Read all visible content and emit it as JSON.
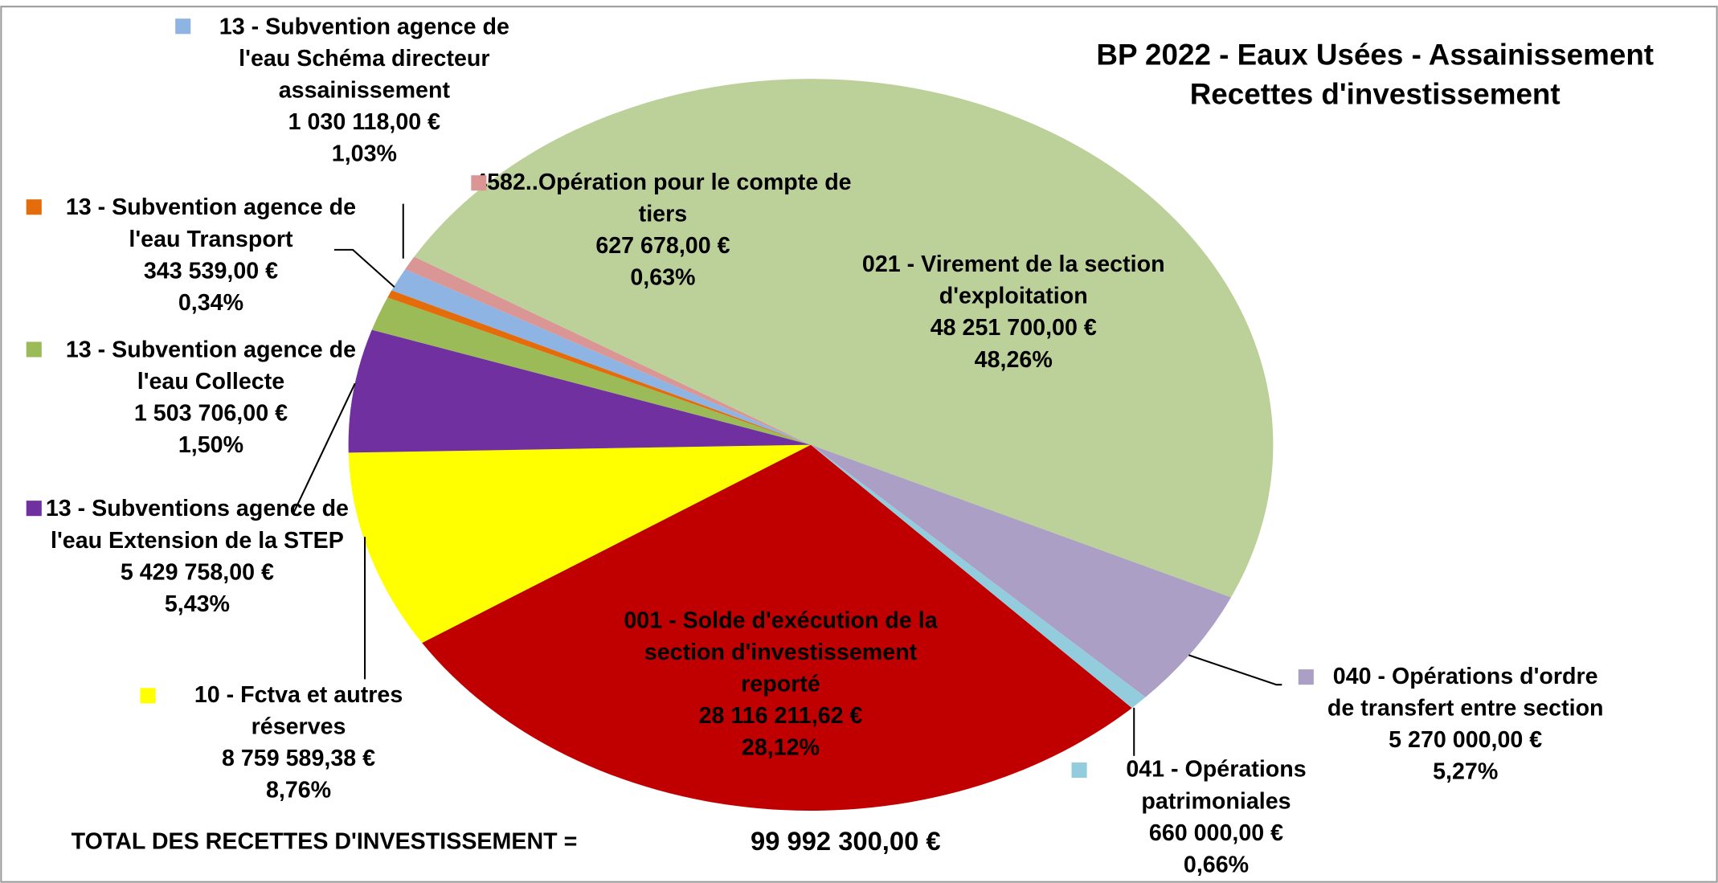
{
  "chart_data": {
    "type": "pie",
    "title": [
      "BP 2022 - Eaux Usées - Assainissement",
      "Recettes d'investissement"
    ],
    "categories": [
      "001 - Solde d'exécution de la section d'investissement reporté",
      "10 - Fctva et autres réserves",
      "13 - Subventions agence de l'eau Extension de la STEP",
      "13 - Subvention agence de l'eau Collecte",
      "13 - Subvention agence de l'eau Transport",
      "13 - Subvention agence de l'eau Schéma directeur assainissement",
      "4582..Opération pour le compte de tiers",
      "021 - Virement de la section d'exploitation",
      "040 - Opérations d'ordre de transfert entre section",
      "041 - Opérations patrimoniales"
    ],
    "values": [
      28116211.62,
      8759589.38,
      5429758,
      1503706,
      343539,
      1030118,
      627678,
      48251700,
      5270000,
      660000
    ],
    "value_labels": [
      "28 116 211,62 €",
      "8 759 589,38 €",
      "5 429 758,00 €",
      "1 503 706,00 €",
      "343 539,00 €",
      "1 030 118,00 €",
      "627 678,00 €",
      "48 251 700,00 €",
      "5 270 000,00 €",
      "660 000,00 €"
    ],
    "percent_labels": [
      "28,12%",
      "8,76%",
      "5,43%",
      "1,50%",
      "0,34%",
      "1,03%",
      "0,63%",
      "48,26%",
      "5,27%",
      "0,66%"
    ],
    "colors": [
      "#c00000",
      "#ffff00",
      "#7030a0",
      "#9bbb59",
      "#e46c0a",
      "#8db4e2",
      "#d99694",
      "#bcd19a",
      "#ab9fc6",
      "#93cddd"
    ],
    "total": {
      "label": "TOTAL DES RECETTES D'INVESTISSEMENT  =",
      "value": "99 992 300,00 €"
    }
  }
}
